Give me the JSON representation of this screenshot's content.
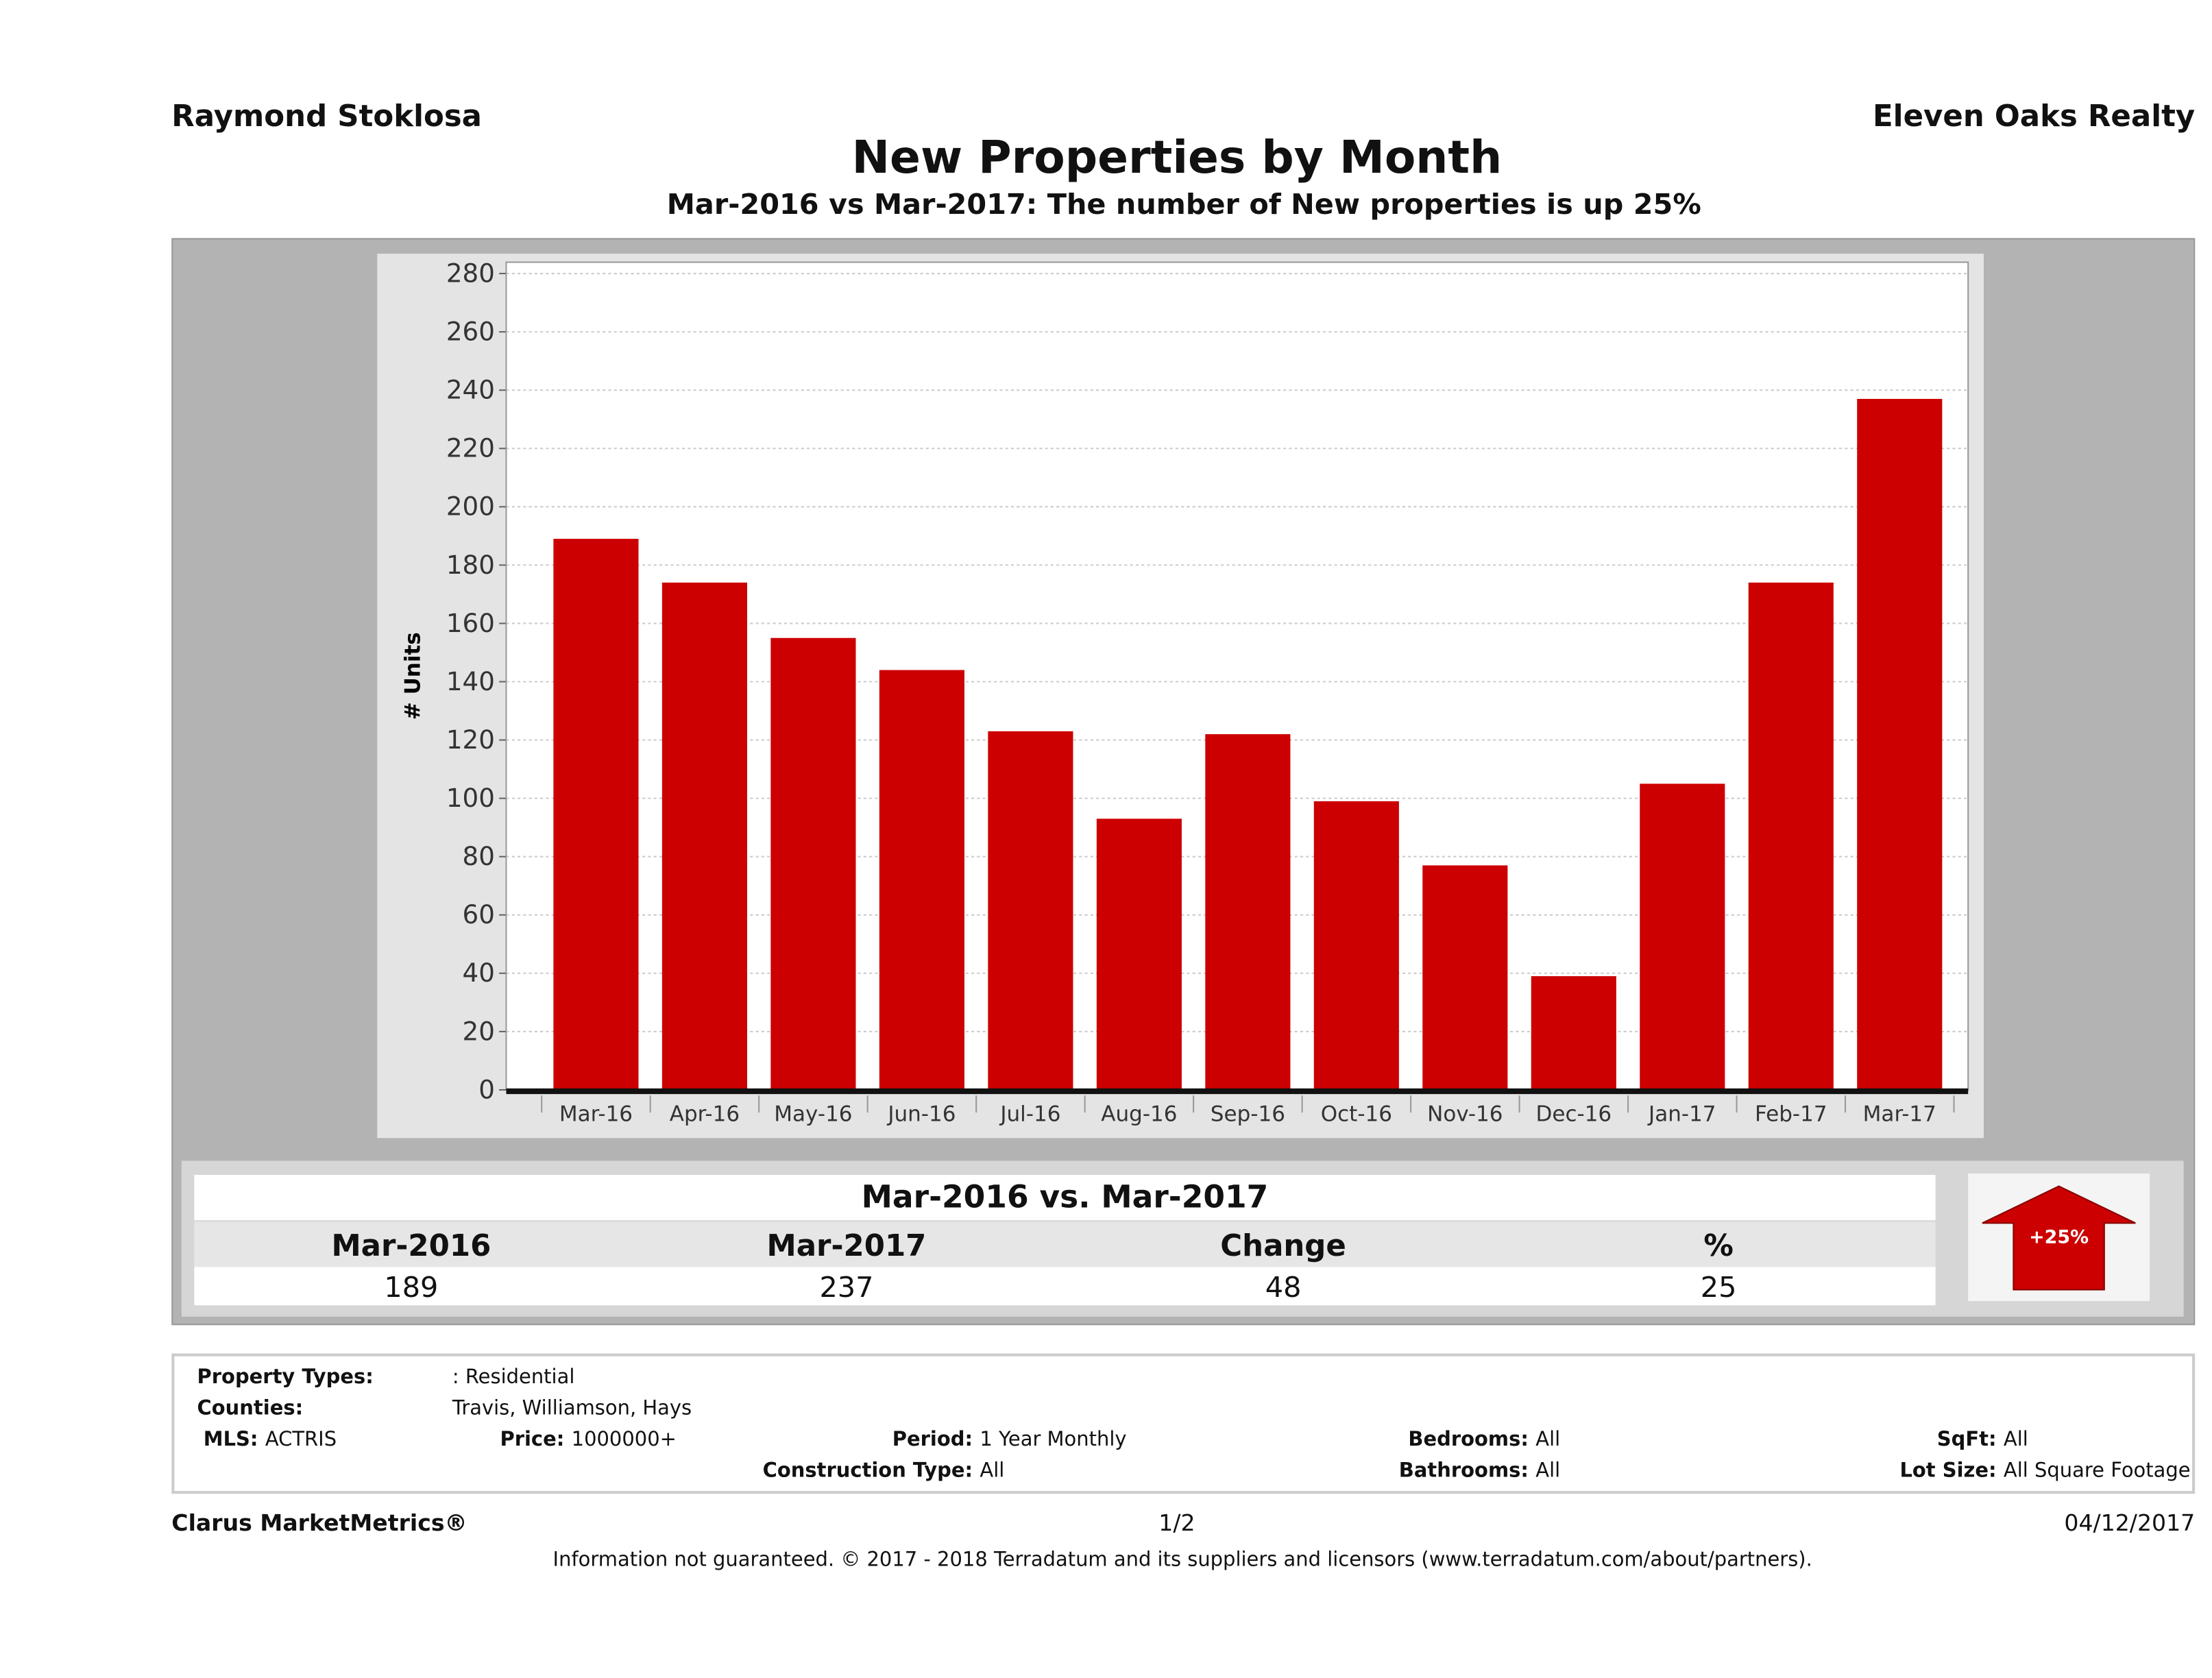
{
  "header": {
    "agent": "Raymond Stoklosa",
    "brokerage": "Eleven Oaks Realty",
    "title": "New Properties by Month",
    "subtitle": "Mar-2016 vs Mar-2017: The number of New  properties is up 25%"
  },
  "chart_data": {
    "type": "bar",
    "title": "New Properties by Month",
    "ylabel": "# Units",
    "xlabel": "",
    "ylim": [
      0,
      280
    ],
    "yticks": [
      0,
      20,
      40,
      60,
      80,
      100,
      120,
      140,
      160,
      180,
      200,
      220,
      240,
      260,
      280
    ],
    "grid": true,
    "bar_color": "#cc0000",
    "categories": [
      "Mar-16",
      "Apr-16",
      "May-16",
      "Jun-16",
      "Jul-16",
      "Aug-16",
      "Sep-16",
      "Oct-16",
      "Nov-16",
      "Dec-16",
      "Jan-17",
      "Feb-17",
      "Mar-17"
    ],
    "values": [
      189,
      174,
      155,
      144,
      123,
      93,
      122,
      99,
      77,
      39,
      105,
      174,
      237
    ]
  },
  "comparison": {
    "title": "Mar-2016 vs. Mar-2017",
    "headers": [
      "Mar-2016",
      "Mar-2017",
      "Change",
      "%"
    ],
    "values": [
      "189",
      "237",
      "48",
      "25"
    ],
    "badge": "+25%",
    "badge_color": "#cc0000",
    "direction": "up"
  },
  "criteria": {
    "property_types_label": "Property Types:",
    "property_types": ": Residential",
    "counties_label": "Counties:",
    "counties": "Travis, Williamson, Hays",
    "mls_label": "MLS:",
    "mls": "ACTRIS",
    "price_label": "Price:",
    "price": "1000000+",
    "period_label": "Period:",
    "period": "1 Year Monthly",
    "construction_label": "Construction Type:",
    "construction": "All",
    "bedrooms_label": "Bedrooms:",
    "bedrooms": "All",
    "bathrooms_label": "Bathrooms:",
    "bathrooms": "All",
    "sqft_label": "SqFt:",
    "sqft": "All",
    "lot_label": "Lot Size:",
    "lot": "All Square Footage"
  },
  "footer": {
    "brand": "Clarus MarketMetrics®",
    "page": "1/2",
    "date": "04/12/2017",
    "disclaimer": "Information not guaranteed. © 2017 - 2018 Terradatum and its suppliers and licensors (www.terradatum.com/about/partners)."
  }
}
